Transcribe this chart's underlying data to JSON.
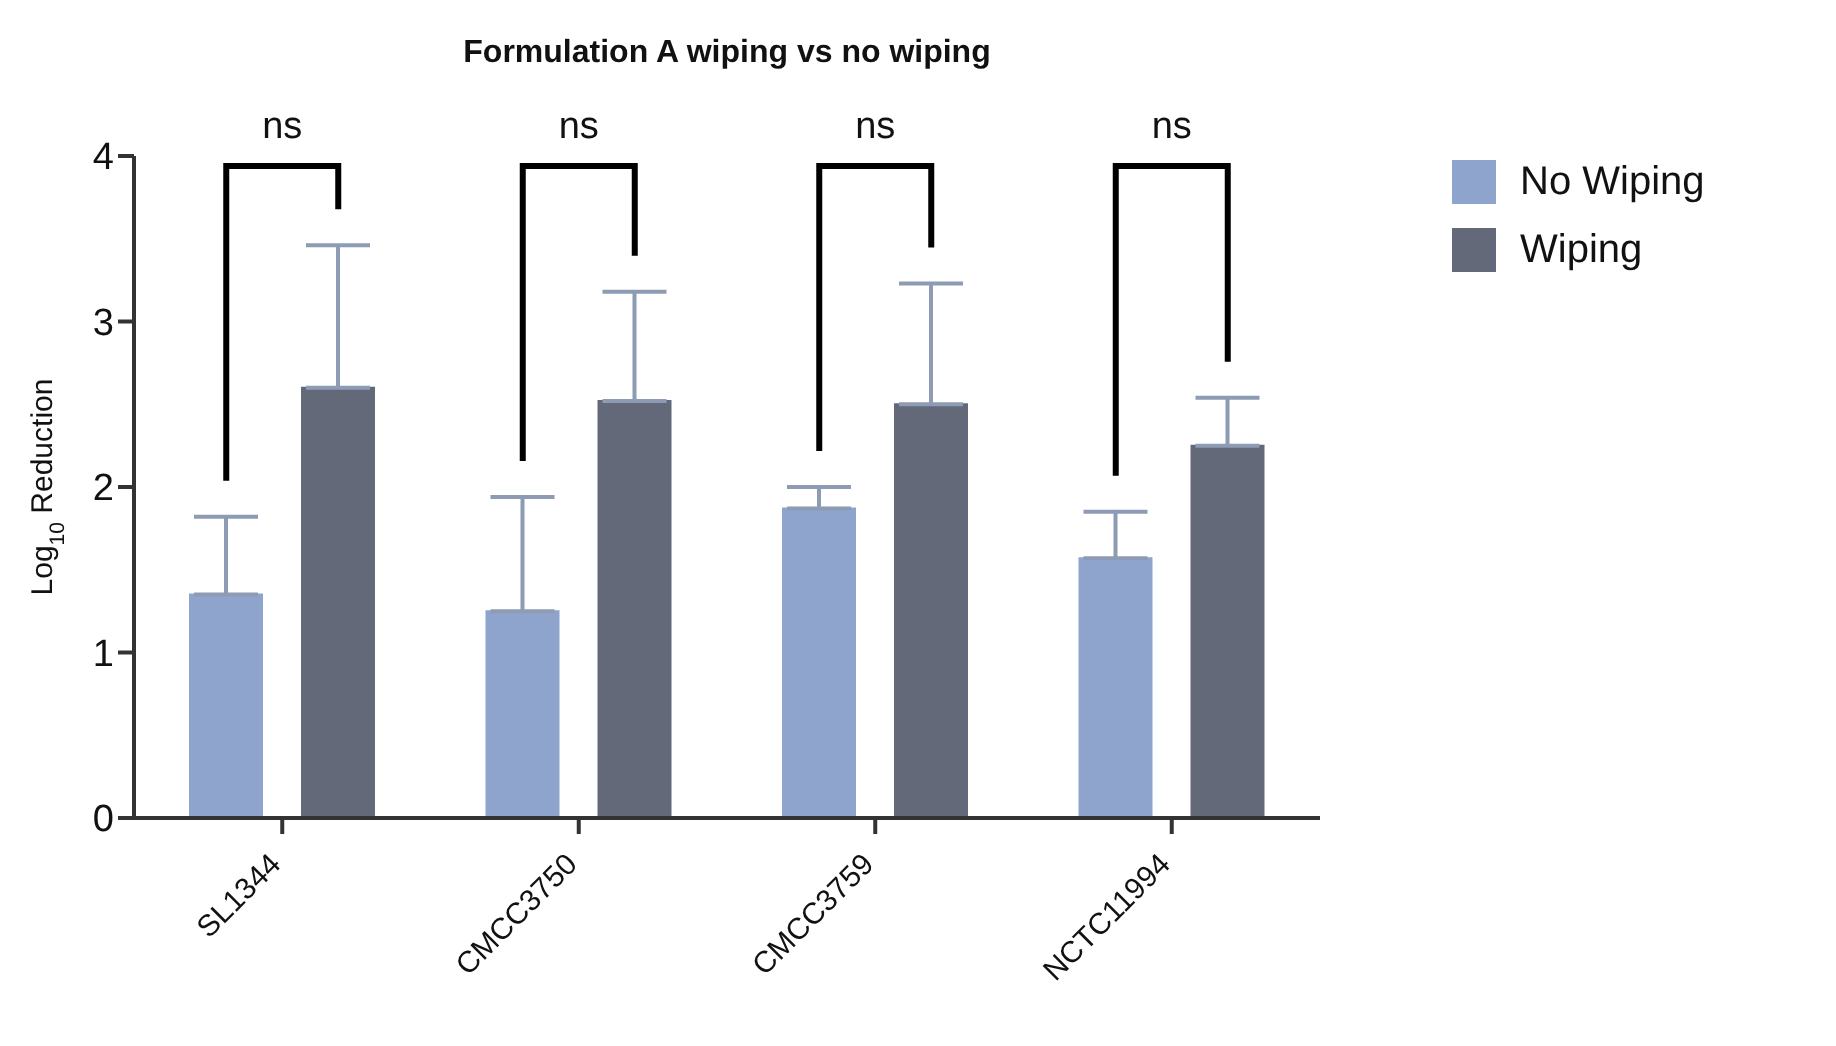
{
  "chart_data": {
    "type": "bar",
    "title": "Formulation A wiping vs no wiping",
    "ylabel": "Log$_{10}$ Reduction",
    "categories": [
      "SL1344",
      "CMCC3750",
      "CMCC3759",
      "NCTC11994"
    ],
    "series": [
      {
        "name": "No Wiping",
        "color": "#8fa4cc",
        "values": [
          1.35,
          1.25,
          1.87,
          1.57
        ],
        "errors": [
          [
            1.35,
            1.82
          ],
          [
            1.25,
            1.94
          ],
          [
            1.87,
            2.0
          ],
          [
            1.57,
            1.85
          ]
        ]
      },
      {
        "name": "Wiping",
        "color": "#636978",
        "values": [
          2.6,
          2.52,
          2.5,
          2.25
        ],
        "errors": [
          [
            2.6,
            3.46
          ],
          [
            2.52,
            3.18
          ],
          [
            2.5,
            3.23
          ],
          [
            2.25,
            2.54
          ]
        ]
      }
    ],
    "ylim": [
      0,
      4
    ],
    "yticks": [
      0,
      1,
      2,
      3,
      4
    ],
    "grid": false,
    "legend": "top right",
    "annotations": [
      "ns",
      "ns",
      "ns",
      "ns"
    ]
  }
}
